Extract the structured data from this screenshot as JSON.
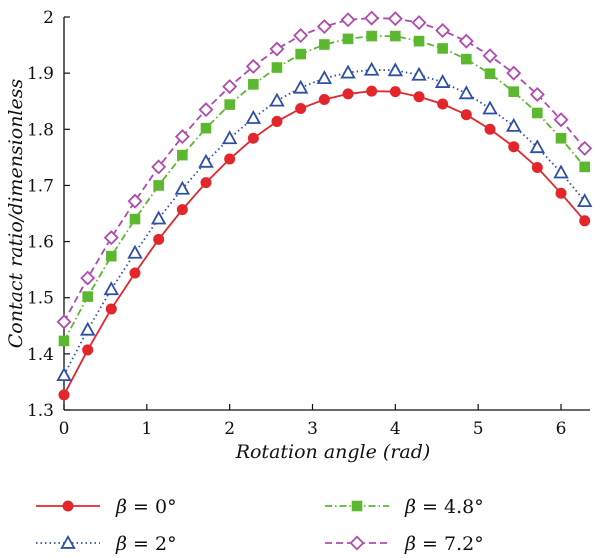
{
  "chart_data": {
    "type": "line",
    "xlabel": "Rotation angle (rad)",
    "ylabel": "Contact ratio/dimensionless",
    "xlim": [
      0,
      6.35
    ],
    "ylim": [
      1.3,
      2.0
    ],
    "xticks": [
      0,
      1,
      2,
      3,
      4,
      5,
      6
    ],
    "yticks": [
      1.3,
      1.4,
      1.5,
      1.6,
      1.7,
      1.8,
      1.9,
      2.0
    ],
    "ytick_labels": [
      "1.3",
      "1.4",
      "1.5",
      "1.6",
      "1.7",
      "1.8",
      "1.9",
      "2"
    ],
    "grid": false,
    "legend_position": "bottom",
    "x": [
      0,
      0.286,
      0.571,
      0.857,
      1.143,
      1.429,
      1.714,
      2.0,
      2.286,
      2.571,
      2.857,
      3.143,
      3.429,
      3.714,
      4.0,
      4.286,
      4.571,
      4.857,
      5.143,
      5.429,
      5.714,
      6.0,
      6.286
    ],
    "series": [
      {
        "name": "β = 0°",
        "label_symbol": "β",
        "label_rest": " = 0°",
        "color": "#e3262b",
        "marker": "filled-circle",
        "line_style": "solid",
        "values": [
          1.327,
          1.407,
          1.48,
          1.544,
          1.604,
          1.657,
          1.705,
          1.747,
          1.784,
          1.814,
          1.837,
          1.853,
          1.863,
          1.868,
          1.867,
          1.858,
          1.845,
          1.826,
          1.8,
          1.769,
          1.732,
          1.686,
          1.637
        ]
      },
      {
        "name": "β = 2°",
        "label_symbol": "β",
        "label_rest": " = 2°",
        "color": "#2e4fa8",
        "marker": "open-triangle",
        "line_style": "dotted",
        "values": [
          1.362,
          1.443,
          1.515,
          1.58,
          1.641,
          1.694,
          1.742,
          1.784,
          1.82,
          1.851,
          1.874,
          1.891,
          1.901,
          1.906,
          1.905,
          1.897,
          1.884,
          1.864,
          1.837,
          1.806,
          1.768,
          1.723,
          1.672
        ]
      },
      {
        "name": "β = 4.8°",
        "label_symbol": "β",
        "label_rest": " = 4.8°",
        "color": "#5cb82e",
        "marker": "filled-square",
        "line_style": "dash-dot",
        "values": [
          1.423,
          1.502,
          1.574,
          1.64,
          1.7,
          1.754,
          1.802,
          1.844,
          1.88,
          1.91,
          1.934,
          1.951,
          1.961,
          1.966,
          1.966,
          1.957,
          1.944,
          1.925,
          1.899,
          1.867,
          1.829,
          1.784,
          1.733
        ]
      },
      {
        "name": "β = 7.2°",
        "label_symbol": "β",
        "label_rest": " = 7.2°",
        "color": "#b04ab0",
        "marker": "open-diamond",
        "line_style": "dashed",
        "values": [
          1.457,
          1.535,
          1.607,
          1.672,
          1.733,
          1.787,
          1.835,
          1.876,
          1.912,
          1.943,
          1.967,
          1.983,
          1.995,
          1.998,
          1.997,
          1.99,
          1.976,
          1.957,
          1.931,
          1.9,
          1.862,
          1.817,
          1.766
        ]
      }
    ]
  }
}
